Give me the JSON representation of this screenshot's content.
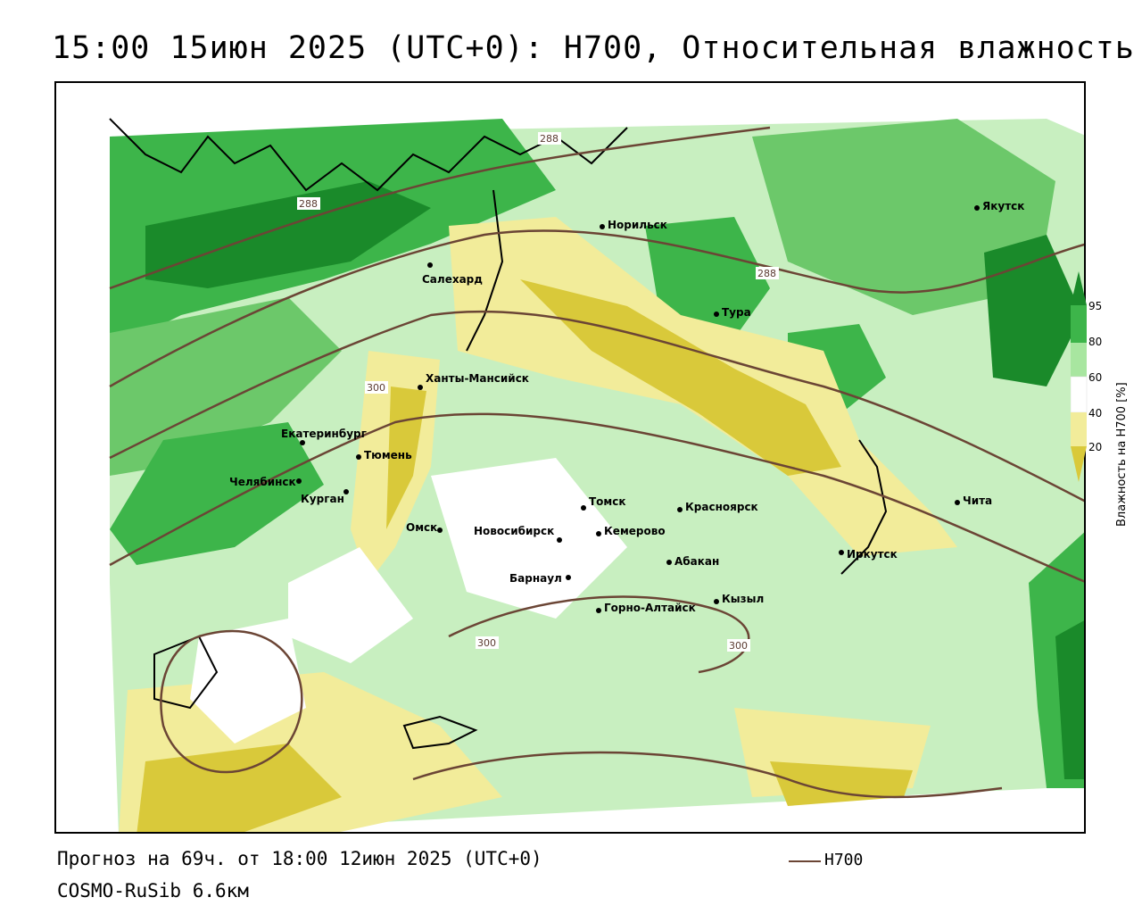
{
  "title": "15:00 15июн 2025 (UTC+0): H700, Относительная влажность",
  "footer": {
    "forecast": "Прогноз на 69ч. от 18:00 12июн 2025 (UTC+0)",
    "model": "COSMO-RuSib 6.6км"
  },
  "legend": {
    "h700_label": "H700",
    "h700_color": "#6b4535"
  },
  "colorbar": {
    "title": "Влажность на H700 [%]",
    "ticks": [
      "95",
      "80",
      "60",
      "40",
      "20"
    ],
    "colors": {
      "c95": "#1a8a2a",
      "c80": "#3db54a",
      "c60": "#a8e6a0",
      "c40": "#ffffff",
      "c20": "#f2ec9a",
      "c0": "#d9c93a"
    }
  },
  "cities": [
    {
      "name": "Салехард",
      "label": "Салехард"
    },
    {
      "name": "Норильск",
      "label": "Норильск"
    },
    {
      "name": "Якутск",
      "label": "Якутск"
    },
    {
      "name": "Тура",
      "label": "Тура"
    },
    {
      "name": "Ханты-Мансийск",
      "label": "Ханты-Мансийск"
    },
    {
      "name": "Екатеринбург",
      "label": "Екатеринбург"
    },
    {
      "name": "Тюмень",
      "label": "Тюмень"
    },
    {
      "name": "Челябинск",
      "label": "Челябинск"
    },
    {
      "name": "Курган",
      "label": "Курган"
    },
    {
      "name": "Омск",
      "label": "Омск"
    },
    {
      "name": "Новосибирск",
      "label": "Новосибирск"
    },
    {
      "name": "Томск",
      "label": "Томск"
    },
    {
      "name": "Кемерово",
      "label": "Кемерово"
    },
    {
      "name": "Красноярск",
      "label": "Красноярск"
    },
    {
      "name": "Барнаул",
      "label": "Барнаул"
    },
    {
      "name": "Абакан",
      "label": "Абакан"
    },
    {
      "name": "Горно-Алтайск",
      "label": "Горно-Алтайск"
    },
    {
      "name": "Кызыл",
      "label": "Кызыл"
    },
    {
      "name": "Иркутск",
      "label": "Иркутск"
    },
    {
      "name": "Чита",
      "label": "Чита"
    }
  ],
  "contour_labels": [
    "288",
    "288",
    "288",
    "300",
    "300",
    "300"
  ]
}
